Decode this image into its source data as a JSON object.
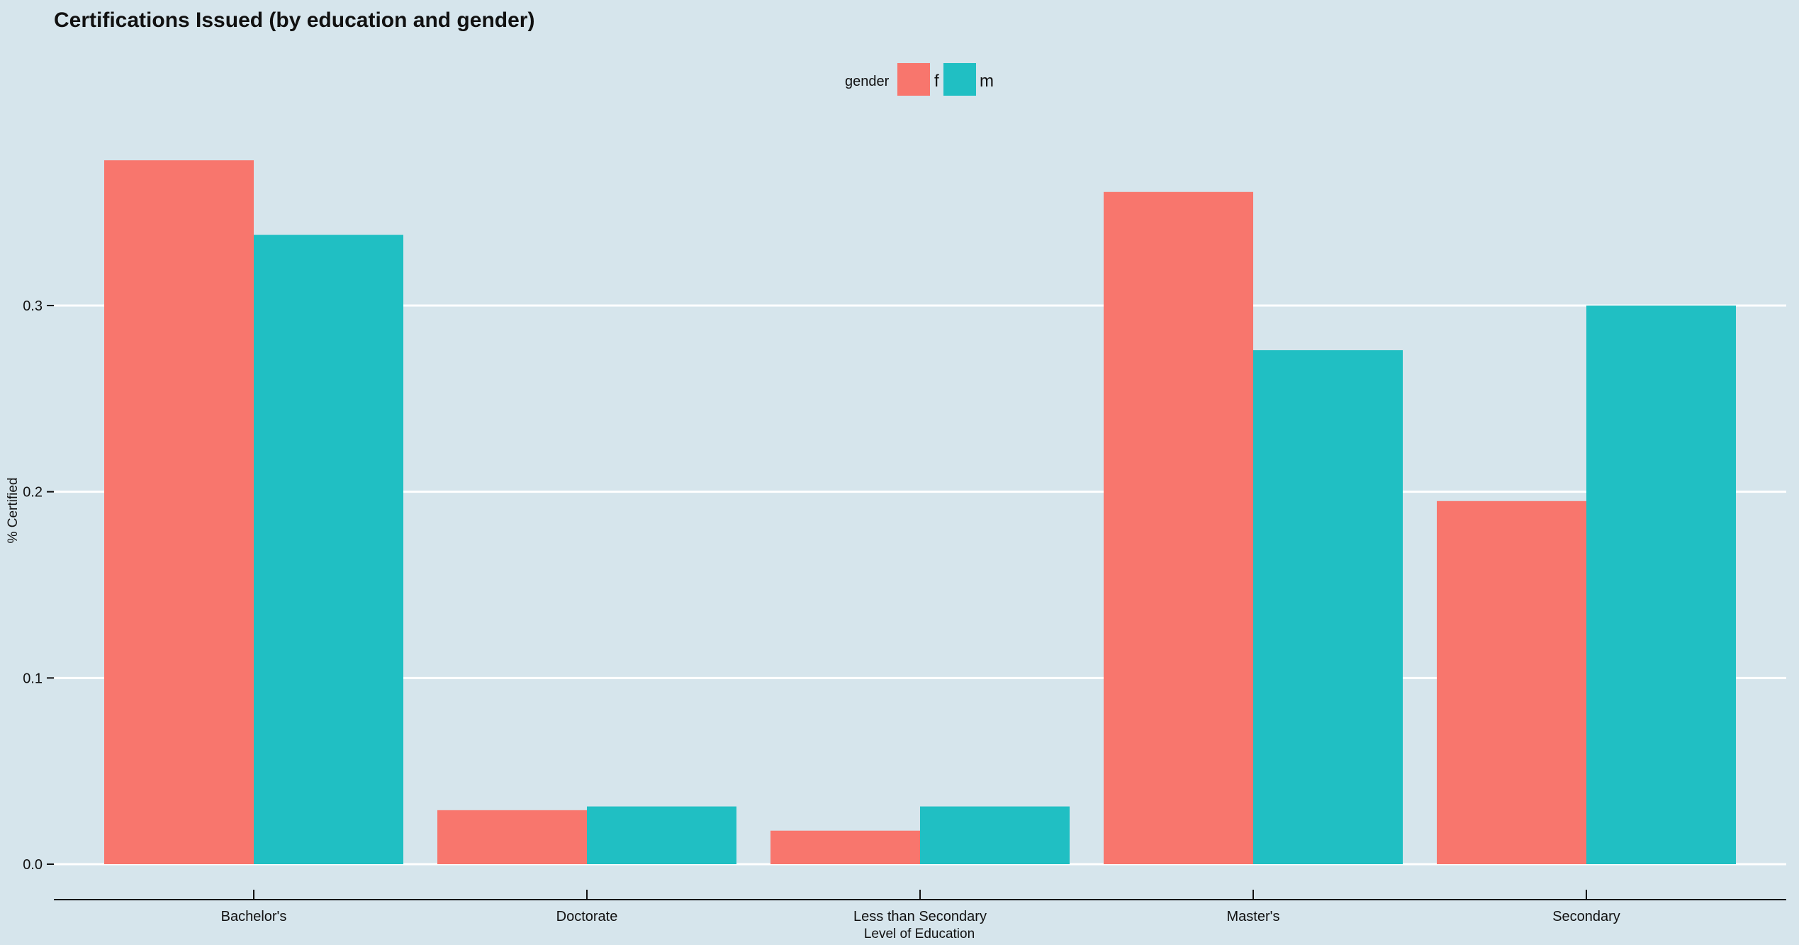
{
  "chart_data": {
    "type": "bar",
    "title": "Certifications Issued (by education and gender)",
    "xlabel": "Level of Education",
    "ylabel": "% Certified",
    "categories": [
      "Bachelor's",
      "Doctorate",
      "Less than Secondary",
      "Master's",
      "Secondary"
    ],
    "series": [
      {
        "name": "f",
        "color": "#f8766d",
        "values": [
          0.378,
          0.029,
          0.018,
          0.361,
          0.195
        ]
      },
      {
        "name": "m",
        "color": "#20bfc3",
        "values": [
          0.338,
          0.031,
          0.031,
          0.276,
          0.3
        ]
      }
    ],
    "legend": {
      "title": "gender",
      "placement": "top-center"
    },
    "ylim": [
      0,
      0.4
    ],
    "yticks": [
      "0.0",
      "0.1",
      "0.2",
      "0.3"
    ],
    "ytick_values": [
      0,
      0.1,
      0.2,
      0.3
    ],
    "grid": true
  },
  "colors": {
    "background": "#d6e5ec",
    "gridline": "#ffffff",
    "axis": "#111111"
  }
}
